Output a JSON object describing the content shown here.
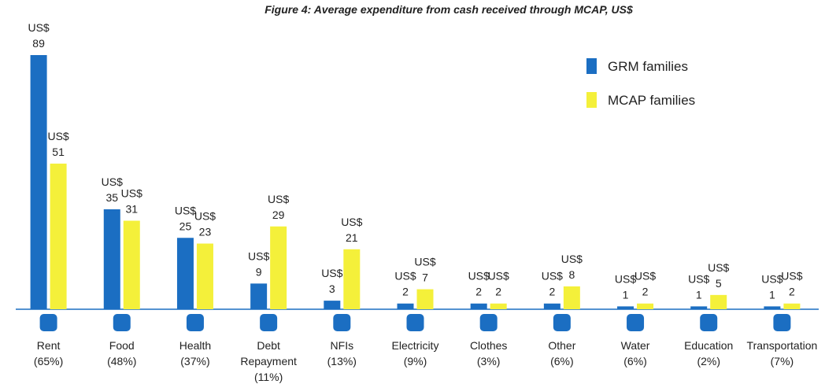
{
  "chart_data": {
    "type": "bar",
    "title": "Figure 4: Average expenditure from cash received through MCAP, US$",
    "categories": [
      "Rent (65%)",
      "Food (48%)",
      "Health (37%)",
      "Debt Repayment (11%)",
      "NFIs (13%)",
      "Electricity (9%)",
      "Clothes (3%)",
      "Other (6%)",
      "Water (6%)",
      "Education (2%)",
      "Transportation (7%)"
    ],
    "series": [
      {
        "name": "GRM families",
        "color": "#1b6ec2",
        "values": [
          89,
          35,
          25,
          9,
          3,
          2,
          2,
          2,
          1,
          1,
          1
        ],
        "value_labels": [
          "US$ 89",
          "US$ 35",
          "US$ 25",
          "US$ 9",
          "US$ 3",
          "US$ 2",
          "US$ 2",
          "US$ 2",
          "US$ 1",
          "US$ 1",
          "US$ 1"
        ]
      },
      {
        "name": "MCAP families",
        "color": "#f4f03a",
        "values": [
          51,
          31,
          23,
          29,
          21,
          7,
          2,
          8,
          2,
          5,
          2
        ],
        "value_labels": [
          "US$ 51",
          "US$ 31",
          "US$ 23",
          "US$ 29",
          "US$ 21",
          "US$ 7",
          "US$ 2",
          "US$ 8",
          "US$ 2",
          "US$ 5",
          "US$ 2"
        ]
      }
    ],
    "legend": "upper right"
  }
}
